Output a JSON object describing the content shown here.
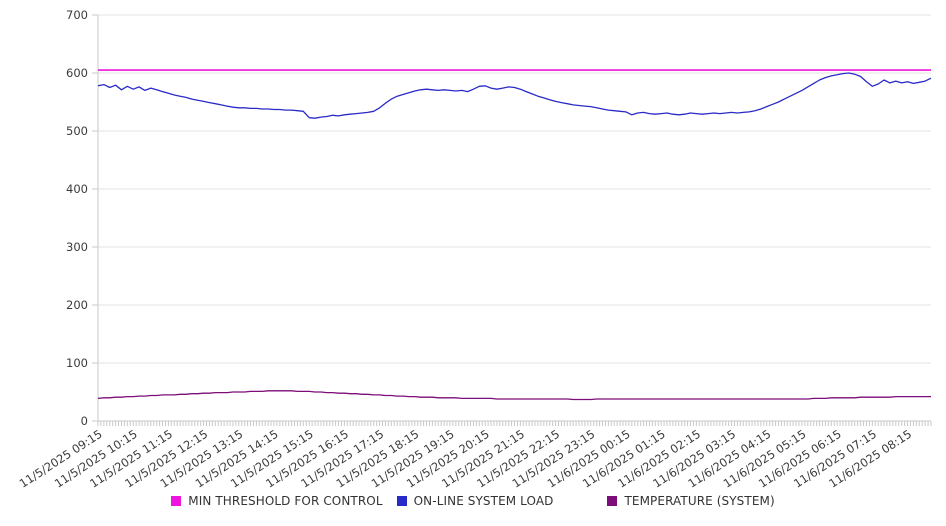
{
  "chart_data": {
    "type": "line",
    "title": "",
    "xlabel": "",
    "ylabel": "",
    "ylim": [
      0,
      700
    ],
    "y_tick_step": 100,
    "y_tick_labels": [
      "0",
      "100",
      "200",
      "300",
      "400",
      "500",
      "600",
      "700"
    ],
    "grid": true,
    "legend_position": "bottom",
    "x_tick_labels": [
      "11/5/2025 09:15",
      "11/5/2025 10:15",
      "11/5/2025 11:15",
      "11/5/2025 12:15",
      "11/5/2025 13:15",
      "11/5/2025 14:15",
      "11/5/2025 15:15",
      "11/5/2025 16:15",
      "11/5/2025 17:15",
      "11/5/2025 18:15",
      "11/5/2025 19:15",
      "11/5/2025 20:15",
      "11/5/2025 21:15",
      "11/5/2025 22:15",
      "11/5/2025 23:15",
      "11/6/2025 00:15",
      "11/6/2025 01:15",
      "11/6/2025 02:15",
      "11/6/2025 03:15",
      "11/6/2025 04:15",
      "11/6/2025 05:15",
      "11/6/2025 06:15",
      "11/6/2025 07:15",
      "11/6/2025 08:15"
    ],
    "x_minor_tick_minutes": 5,
    "sample_interval_minutes": 10,
    "total_span_minutes": 1420,
    "series": [
      {
        "name": "MIN THRESHOLD FOR CONTROL",
        "kind": "threshold",
        "color": "#ee14e0",
        "value": 605
      },
      {
        "name": "ON-LINE SYSTEM LOAD",
        "kind": "line",
        "color": "#2a2ac8",
        "values": [
          578,
          580,
          575,
          579,
          571,
          577,
          572,
          576,
          570,
          574,
          571,
          568,
          565,
          562,
          560,
          558,
          555,
          553,
          551,
          549,
          547,
          545,
          543,
          541,
          540,
          540,
          539,
          539,
          538,
          538,
          537,
          537,
          536,
          536,
          535,
          534,
          523,
          522,
          524,
          525,
          527,
          526,
          528,
          529,
          530,
          531,
          532,
          534,
          540,
          548,
          555,
          560,
          563,
          566,
          569,
          571,
          572,
          571,
          570,
          571,
          570,
          569,
          570,
          568,
          572,
          577,
          578,
          574,
          572,
          574,
          576,
          575,
          572,
          568,
          564,
          560,
          557,
          554,
          551,
          549,
          547,
          545,
          544,
          543,
          542,
          540,
          538,
          536,
          535,
          534,
          533,
          528,
          531,
          532,
          530,
          529,
          530,
          531,
          529,
          528,
          529,
          531,
          530,
          529,
          530,
          531,
          530,
          531,
          532,
          531,
          532,
          533,
          535,
          538,
          542,
          546,
          550,
          555,
          560,
          565,
          570,
          576,
          582,
          588,
          592,
          595,
          597,
          599,
          600,
          598,
          594,
          585,
          577,
          581,
          588,
          583,
          586,
          583,
          585,
          582,
          584,
          586,
          591
        ]
      },
      {
        "name": "TEMPERATURE (SYSTEM)",
        "kind": "line",
        "color": "#7d0d78",
        "values": [
          39,
          40,
          40,
          41,
          41,
          42,
          42,
          43,
          43,
          44,
          44,
          45,
          45,
          45,
          46,
          46,
          47,
          47,
          48,
          48,
          49,
          49,
          49,
          50,
          50,
          50,
          51,
          51,
          51,
          52,
          52,
          52,
          52,
          52,
          51,
          51,
          51,
          50,
          50,
          49,
          49,
          48,
          48,
          47,
          47,
          46,
          46,
          45,
          45,
          44,
          44,
          43,
          43,
          42,
          42,
          41,
          41,
          41,
          40,
          40,
          40,
          40,
          39,
          39,
          39,
          39,
          39,
          39,
          38,
          38,
          38,
          38,
          38,
          38,
          38,
          38,
          38,
          38,
          38,
          38,
          38,
          37,
          37,
          37,
          37,
          38,
          38,
          38,
          38,
          38,
          38,
          38,
          38,
          38,
          38,
          38,
          38,
          38,
          38,
          38,
          38,
          38,
          38,
          38,
          38,
          38,
          38,
          38,
          38,
          38,
          38,
          38,
          38,
          38,
          38,
          38,
          38,
          38,
          38,
          38,
          38,
          38,
          39,
          39,
          39,
          40,
          40,
          40,
          40,
          40,
          41,
          41,
          41,
          41,
          41,
          41,
          42,
          42,
          42,
          42,
          42,
          42,
          42
        ]
      }
    ],
    "colors": {
      "grid": "#e3e3e3",
      "axis": "#c9c9c9",
      "tick_label": "#3c3c3c",
      "legend_text": "#333333",
      "background": "#ffffff"
    }
  }
}
